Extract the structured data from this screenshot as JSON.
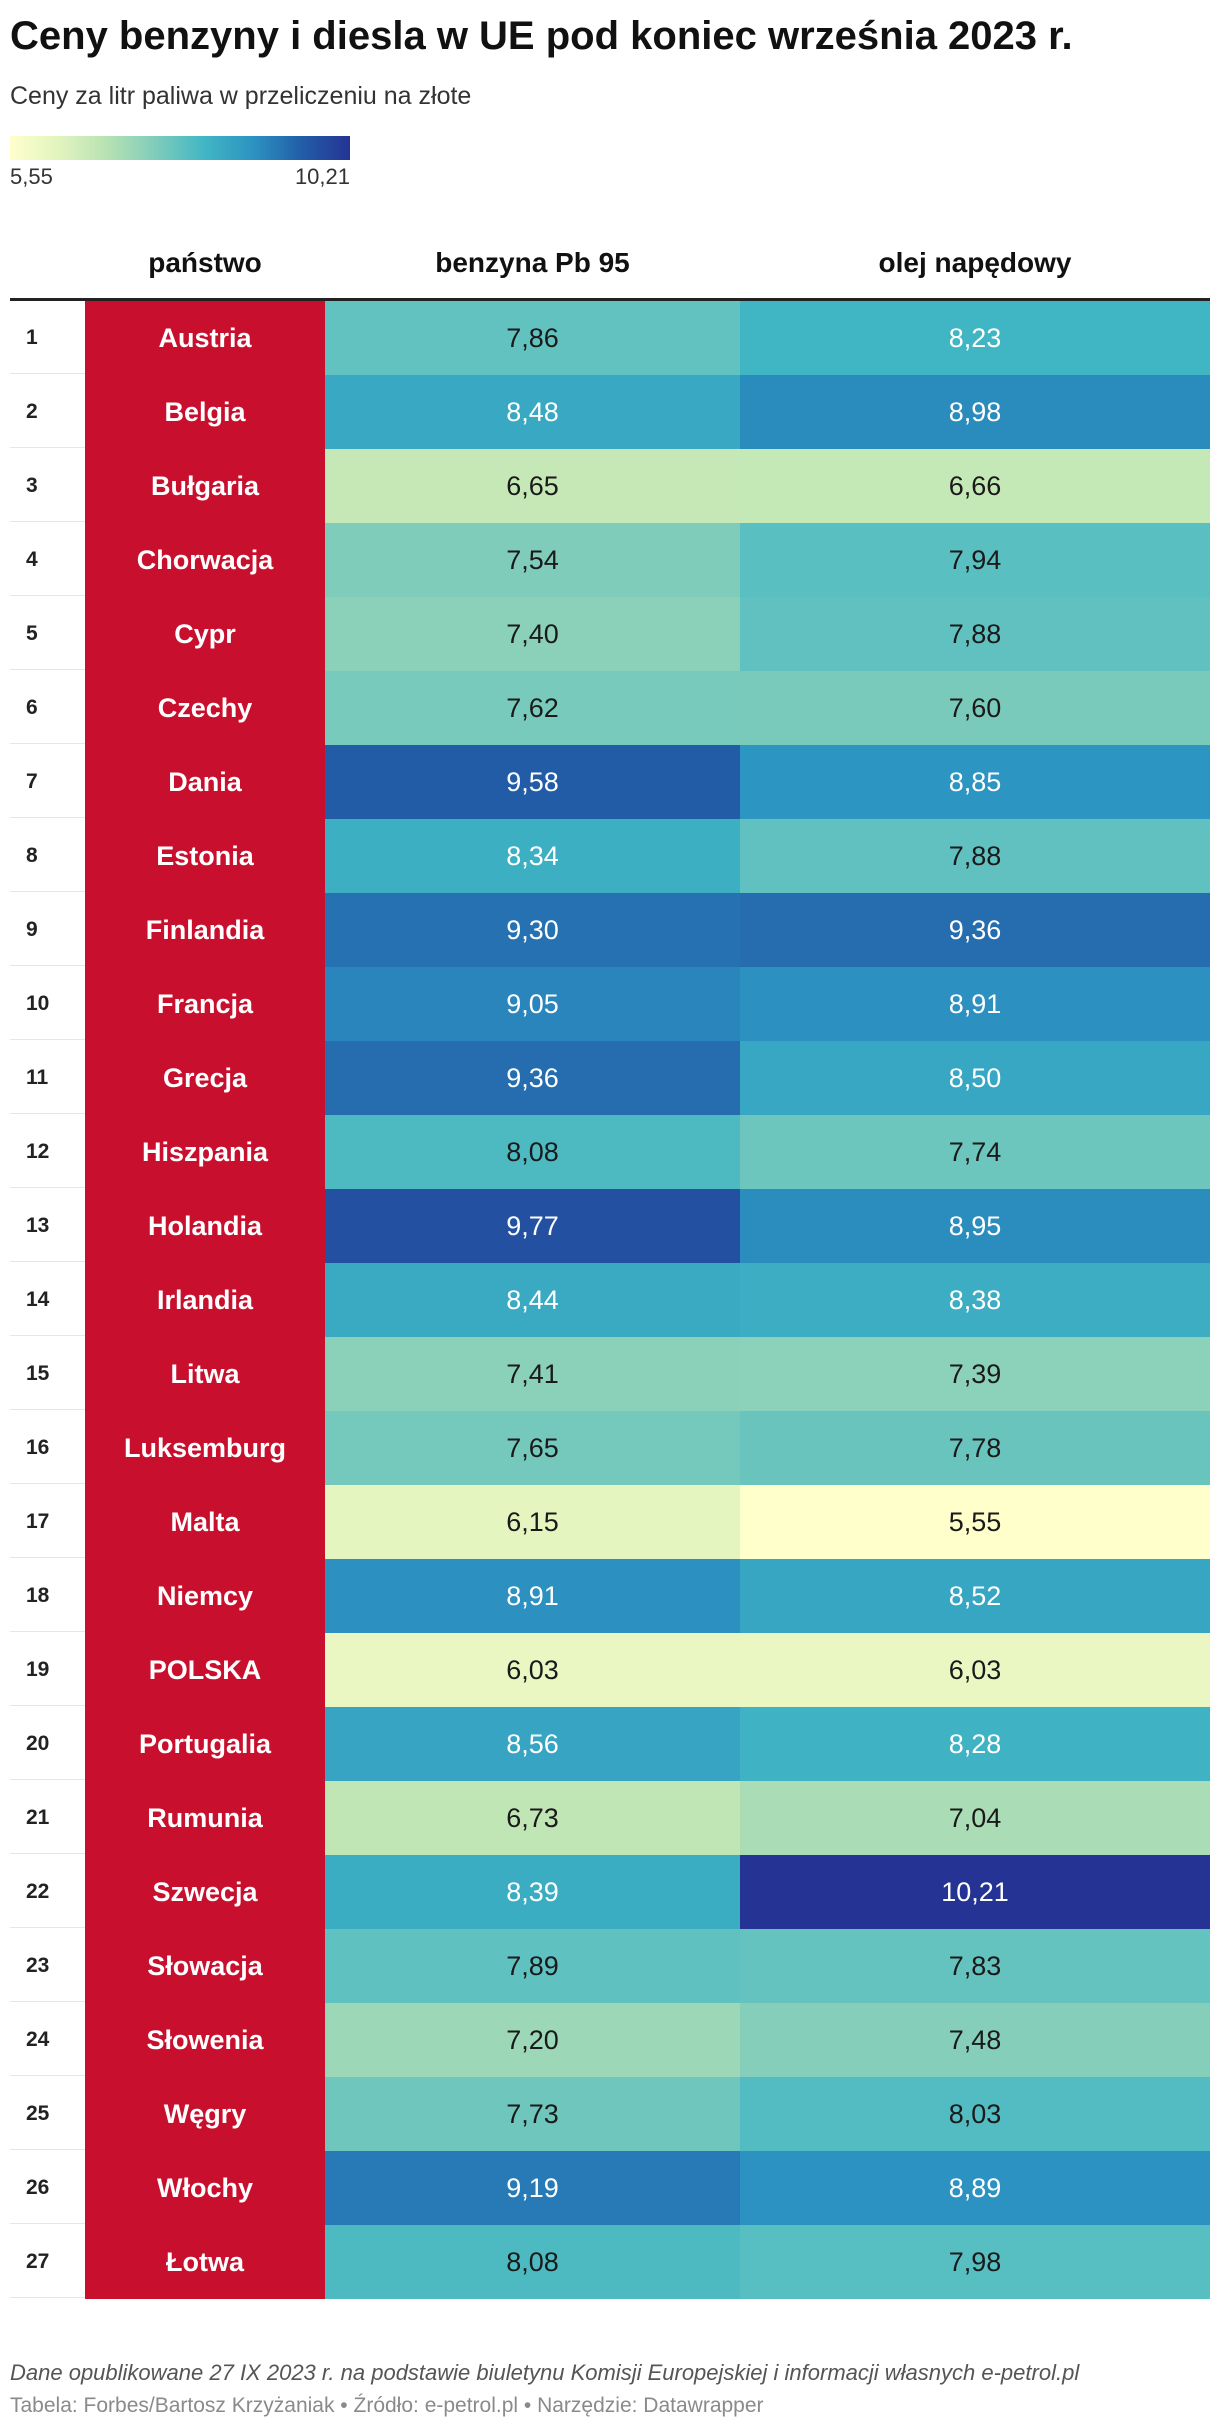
{
  "title": "Ceny benzyny i diesla w UE pod koniec września 2023 r.",
  "subtitle": "Ceny za litr paliwa w przeliczeniu na złote",
  "legend": {
    "min_label": "5,55",
    "max_label": "10,21",
    "min": 5.55,
    "max": 10.21
  },
  "colors": {
    "country_cell": "#c8102e",
    "scale": [
      "#ffffcc",
      "#e2f4bf",
      "#b7e2b3",
      "#7fccbb",
      "#41b6c4",
      "#2c93c1",
      "#225ea8",
      "#253494"
    ]
  },
  "columns": {
    "country": "państwo",
    "petrol": "benzyna Pb 95",
    "diesel": "olej napędowy"
  },
  "footnote": "Dane opublikowane 27 IX 2023 r. na podstawie biuletynu Komisji Europejskiej i informacji własnych e-petrol.pl",
  "credits": "Tabela: Forbes/Bartosz Krzyżaniak • Źródło: e-petrol.pl • Narzędzie: Datawrapper",
  "chart_data": {
    "type": "table",
    "columns": [
      "",
      "państwo",
      "benzyna Pb 95",
      "olej napędowy"
    ],
    "rows": [
      {
        "rank": "1",
        "country": "Austria",
        "petrol": "7,86",
        "diesel": "8,23"
      },
      {
        "rank": "2",
        "country": "Belgia",
        "petrol": "8,48",
        "diesel": "8,98"
      },
      {
        "rank": "3",
        "country": "Bułgaria",
        "petrol": "6,65",
        "diesel": "6,66"
      },
      {
        "rank": "4",
        "country": "Chorwacja",
        "petrol": "7,54",
        "diesel": "7,94"
      },
      {
        "rank": "5",
        "country": "Cypr",
        "petrol": "7,40",
        "diesel": "7,88"
      },
      {
        "rank": "6",
        "country": "Czechy",
        "petrol": "7,62",
        "diesel": "7,60"
      },
      {
        "rank": "7",
        "country": "Dania",
        "petrol": "9,58",
        "diesel": "8,85"
      },
      {
        "rank": "8",
        "country": "Estonia",
        "petrol": "8,34",
        "diesel": "7,88"
      },
      {
        "rank": "9",
        "country": "Finlandia",
        "petrol": "9,30",
        "diesel": "9,36"
      },
      {
        "rank": "10",
        "country": "Francja",
        "petrol": "9,05",
        "diesel": "8,91"
      },
      {
        "rank": "11",
        "country": "Grecja",
        "petrol": "9,36",
        "diesel": "8,50"
      },
      {
        "rank": "12",
        "country": "Hiszpania",
        "petrol": "8,08",
        "diesel": "7,74"
      },
      {
        "rank": "13",
        "country": "Holandia",
        "petrol": "9,77",
        "diesel": "8,95"
      },
      {
        "rank": "14",
        "country": "Irlandia",
        "petrol": "8,44",
        "diesel": "8,38"
      },
      {
        "rank": "15",
        "country": "Litwa",
        "petrol": "7,41",
        "diesel": "7,39"
      },
      {
        "rank": "16",
        "country": "Luksemburg",
        "petrol": "7,65",
        "diesel": "7,78"
      },
      {
        "rank": "17",
        "country": "Malta",
        "petrol": "6,15",
        "diesel": "5,55"
      },
      {
        "rank": "18",
        "country": "Niemcy",
        "petrol": "8,91",
        "diesel": "8,52"
      },
      {
        "rank": "19",
        "country": "POLSKA",
        "petrol": "6,03",
        "diesel": "6,03"
      },
      {
        "rank": "20",
        "country": "Portugalia",
        "petrol": "8,56",
        "diesel": "8,28"
      },
      {
        "rank": "21",
        "country": "Rumunia",
        "petrol": "6,73",
        "diesel": "7,04"
      },
      {
        "rank": "22",
        "country": "Szwecja",
        "petrol": "8,39",
        "diesel": "10,21"
      },
      {
        "rank": "23",
        "country": "Słowacja",
        "petrol": "7,89",
        "diesel": "7,83"
      },
      {
        "rank": "24",
        "country": "Słowenia",
        "petrol": "7,20",
        "diesel": "7,48"
      },
      {
        "rank": "25",
        "country": "Węgry",
        "petrol": "7,73",
        "diesel": "8,03"
      },
      {
        "rank": "26",
        "country": "Włochy",
        "petrol": "9,19",
        "diesel": "8,89"
      },
      {
        "rank": "27",
        "country": "Łotwa",
        "petrol": "8,08",
        "diesel": "7,98"
      }
    ]
  }
}
